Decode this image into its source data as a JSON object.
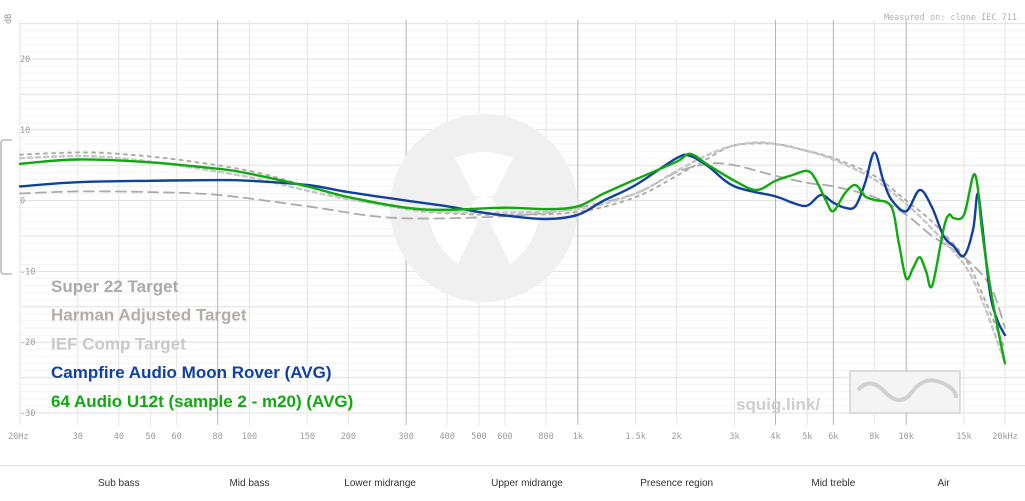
{
  "measured_on": "Measured on: clone IEC 711",
  "watermark": {
    "text": "squig.link/"
  },
  "bands": [
    {
      "label": "Sub bass",
      "freq": 40
    },
    {
      "label": "Mid bass",
      "freq": 100
    },
    {
      "label": "Lower midrange",
      "freq": 250
    },
    {
      "label": "Upper midrange",
      "freq": 700
    },
    {
      "label": "Presence region",
      "freq": 2000
    },
    {
      "label": "Mid treble",
      "freq": 6000
    },
    {
      "label": "Air",
      "freq": 13000
    }
  ],
  "chart_data": {
    "type": "line",
    "x_scale": "log",
    "xlim": [
      20,
      20000
    ],
    "ylim": [
      -30,
      25
    ],
    "ylabel": "dB",
    "x_ticks": [
      {
        "f": 20,
        "label": "20Hz"
      },
      {
        "f": 30,
        "label": "30"
      },
      {
        "f": 40,
        "label": "40"
      },
      {
        "f": 50,
        "label": "50"
      },
      {
        "f": 60,
        "label": "60"
      },
      {
        "f": 80,
        "label": "80"
      },
      {
        "f": 100,
        "label": "100"
      },
      {
        "f": 150,
        "label": "150"
      },
      {
        "f": 200,
        "label": "200"
      },
      {
        "f": 300,
        "label": "300"
      },
      {
        "f": 400,
        "label": "400"
      },
      {
        "f": 500,
        "label": "500"
      },
      {
        "f": 600,
        "label": "600"
      },
      {
        "f": 800,
        "label": "800"
      },
      {
        "f": 1000,
        "label": "1k"
      },
      {
        "f": 1500,
        "label": "1.5k"
      },
      {
        "f": 2000,
        "label": "2k"
      },
      {
        "f": 3000,
        "label": "3k"
      },
      {
        "f": 4000,
        "label": "4k"
      },
      {
        "f": 5000,
        "label": "5k"
      },
      {
        "f": 6000,
        "label": "6k"
      },
      {
        "f": 8000,
        "label": "8k"
      },
      {
        "f": 10000,
        "label": "10k"
      },
      {
        "f": 15000,
        "label": "15k"
      },
      {
        "f": 20000,
        "label": "20kHz"
      }
    ],
    "major_x": [
      80,
      300,
      1000,
      4000,
      6000,
      10000
    ],
    "y_ticks": [
      {
        "v": 20,
        "label": "20"
      },
      {
        "v": 10,
        "label": "10"
      },
      {
        "v": 0,
        "label": "0"
      },
      {
        "v": -10,
        "label": "-10"
      },
      {
        "v": -20,
        "label": "-20"
      },
      {
        "v": -30,
        "label": "-30"
      }
    ],
    "series": [
      {
        "name": "Super 22 Target",
        "color": "#aaaaaa",
        "dash": "10,6",
        "width": 1.8,
        "points": [
          [
            20,
            1
          ],
          [
            30,
            1.3
          ],
          [
            50,
            1.2
          ],
          [
            80,
            0.8
          ],
          [
            150,
            -0.8
          ],
          [
            250,
            -2.3
          ],
          [
            400,
            -2.5
          ],
          [
            700,
            -2
          ],
          [
            1000,
            -1
          ],
          [
            1500,
            1
          ],
          [
            2000,
            4
          ],
          [
            2500,
            5.2
          ],
          [
            3000,
            5
          ],
          [
            4000,
            3.5
          ],
          [
            5000,
            2.5
          ],
          [
            6000,
            2
          ],
          [
            8000,
            0.5
          ],
          [
            10000,
            -2
          ],
          [
            12000,
            -5
          ],
          [
            15000,
            -8
          ],
          [
            18000,
            -12
          ],
          [
            20000,
            -18
          ]
        ]
      },
      {
        "name": "Harman Adjusted Target",
        "color": "#b5ada5",
        "dash": "3,5",
        "width": 2,
        "points": [
          [
            20,
            6.5
          ],
          [
            30,
            6.8
          ],
          [
            40,
            6.6
          ],
          [
            60,
            5.8
          ],
          [
            100,
            4.2
          ],
          [
            150,
            2
          ],
          [
            200,
            0.3
          ],
          [
            300,
            -1.2
          ],
          [
            400,
            -1.8
          ],
          [
            600,
            -2
          ],
          [
            1000,
            -1.6
          ],
          [
            1500,
            0.5
          ],
          [
            2000,
            3.5
          ],
          [
            2500,
            6
          ],
          [
            3000,
            7.8
          ],
          [
            4000,
            8
          ],
          [
            5000,
            7
          ],
          [
            6000,
            6
          ],
          [
            8000,
            3.5
          ],
          [
            10000,
            0
          ],
          [
            12000,
            -3
          ],
          [
            15000,
            -8
          ],
          [
            17000,
            -13
          ],
          [
            20000,
            -21
          ]
        ]
      },
      {
        "name": "IEF Comp Target",
        "color": "#c8c8c8",
        "dash": "4,4",
        "width": 2.5,
        "points": [
          [
            20,
            6
          ],
          [
            30,
            6.3
          ],
          [
            40,
            6
          ],
          [
            60,
            5
          ],
          [
            100,
            3.3
          ],
          [
            150,
            1.4
          ],
          [
            200,
            0.2
          ],
          [
            300,
            -1.1
          ],
          [
            400,
            -1.6
          ],
          [
            600,
            -1.7
          ],
          [
            1000,
            -1.2
          ],
          [
            1500,
            1
          ],
          [
            2000,
            4.2
          ],
          [
            2500,
            6.5
          ],
          [
            3000,
            7.8
          ],
          [
            3500,
            8.2
          ],
          [
            4000,
            8
          ],
          [
            5000,
            7
          ],
          [
            6000,
            5.8
          ],
          [
            8000,
            3
          ],
          [
            10000,
            -0.5
          ],
          [
            12000,
            -4
          ],
          [
            15000,
            -9
          ],
          [
            17000,
            -14
          ],
          [
            19000,
            -20
          ],
          [
            20000,
            -23
          ]
        ]
      },
      {
        "name": "Campfire Audio Moon Rover (AVG)",
        "color": "#1040a0",
        "width": 2.4,
        "points": [
          [
            20,
            2
          ],
          [
            30,
            2.6
          ],
          [
            50,
            2.8
          ],
          [
            80,
            2.9
          ],
          [
            100,
            2.8
          ],
          [
            150,
            2.2
          ],
          [
            200,
            1.2
          ],
          [
            300,
            0
          ],
          [
            400,
            -0.8
          ],
          [
            500,
            -1.6
          ],
          [
            600,
            -2.1
          ],
          [
            800,
            -2.6
          ],
          [
            1000,
            -2
          ],
          [
            1200,
            0
          ],
          [
            1500,
            2.2
          ],
          [
            2000,
            6
          ],
          [
            2200,
            6.3
          ],
          [
            2500,
            4.8
          ],
          [
            3000,
            2
          ],
          [
            4000,
            0.6
          ],
          [
            4500,
            -0.3
          ],
          [
            5000,
            -0.7
          ],
          [
            5500,
            0.8
          ],
          [
            6000,
            -0.3
          ],
          [
            6500,
            -1
          ],
          [
            7000,
            -0.8
          ],
          [
            7500,
            2.5
          ],
          [
            8000,
            6.8
          ],
          [
            8500,
            3
          ],
          [
            9000,
            0.2
          ],
          [
            10000,
            -1.5
          ],
          [
            11000,
            1.5
          ],
          [
            12000,
            -1
          ],
          [
            13000,
            -5
          ],
          [
            14000,
            -6.5
          ],
          [
            15000,
            -7.8
          ],
          [
            16000,
            -4
          ],
          [
            16500,
            1
          ],
          [
            17000,
            -3
          ],
          [
            18000,
            -13
          ],
          [
            19000,
            -17
          ],
          [
            20000,
            -19
          ]
        ]
      },
      {
        "name": "64 Audio U12t (sample 2 - m20) (AVG)",
        "color": "#10aa10",
        "width": 2.4,
        "points": [
          [
            20,
            5.2
          ],
          [
            30,
            5.8
          ],
          [
            50,
            5.4
          ],
          [
            80,
            4.5
          ],
          [
            100,
            3.8
          ],
          [
            150,
            2
          ],
          [
            200,
            0.5
          ],
          [
            300,
            -1
          ],
          [
            400,
            -1.3
          ],
          [
            600,
            -1
          ],
          [
            800,
            -1.2
          ],
          [
            1000,
            -0.8
          ],
          [
            1200,
            1
          ],
          [
            1500,
            3
          ],
          [
            2000,
            5.5
          ],
          [
            2200,
            6.6
          ],
          [
            2500,
            5
          ],
          [
            3000,
            2.8
          ],
          [
            3500,
            1.5
          ],
          [
            4000,
            2.8
          ],
          [
            4500,
            3.6
          ],
          [
            5000,
            4.2
          ],
          [
            5300,
            3
          ],
          [
            5700,
            0
          ],
          [
            6000,
            -1.5
          ],
          [
            6500,
            1
          ],
          [
            7000,
            2.2
          ],
          [
            7500,
            0.6
          ],
          [
            8000,
            0.1
          ],
          [
            9000,
            -0.8
          ],
          [
            9500,
            -6
          ],
          [
            10000,
            -11
          ],
          [
            10500,
            -9.5
          ],
          [
            11000,
            -8
          ],
          [
            11500,
            -10
          ],
          [
            12000,
            -12
          ],
          [
            13000,
            -4
          ],
          [
            13500,
            -2
          ],
          [
            14000,
            -2.5
          ],
          [
            15000,
            -2
          ],
          [
            16000,
            3.5
          ],
          [
            16500,
            2
          ],
          [
            17000,
            -4
          ],
          [
            18000,
            -12
          ],
          [
            19000,
            -18
          ],
          [
            20000,
            -23
          ]
        ]
      }
    ]
  }
}
